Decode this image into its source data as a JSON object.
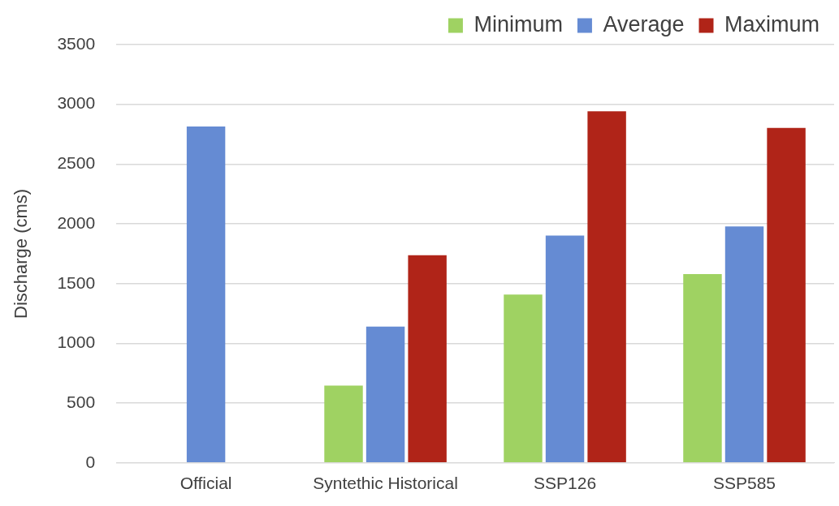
{
  "chart_data": {
    "type": "bar",
    "ylabel": "Discharge (cms)",
    "categories": [
      "Official",
      "Syntethic Historical",
      "SSP126",
      "SSP585"
    ],
    "series": [
      {
        "name": "Minimum",
        "color": "#9fd262",
        "values": [
          null,
          647,
          1408,
          1579
        ]
      },
      {
        "name": "Average",
        "color": "#658bd3",
        "values": [
          2815,
          1141,
          1902,
          1978
        ]
      },
      {
        "name": "Maximum",
        "color": "#b02418",
        "values": [
          null,
          1737,
          2942,
          2803
        ]
      }
    ],
    "ylim": [
      0,
      3500
    ],
    "yticks": [
      0,
      500,
      1000,
      1500,
      2000,
      2500,
      3000,
      3500
    ],
    "grid": "y",
    "legend": "top right"
  }
}
